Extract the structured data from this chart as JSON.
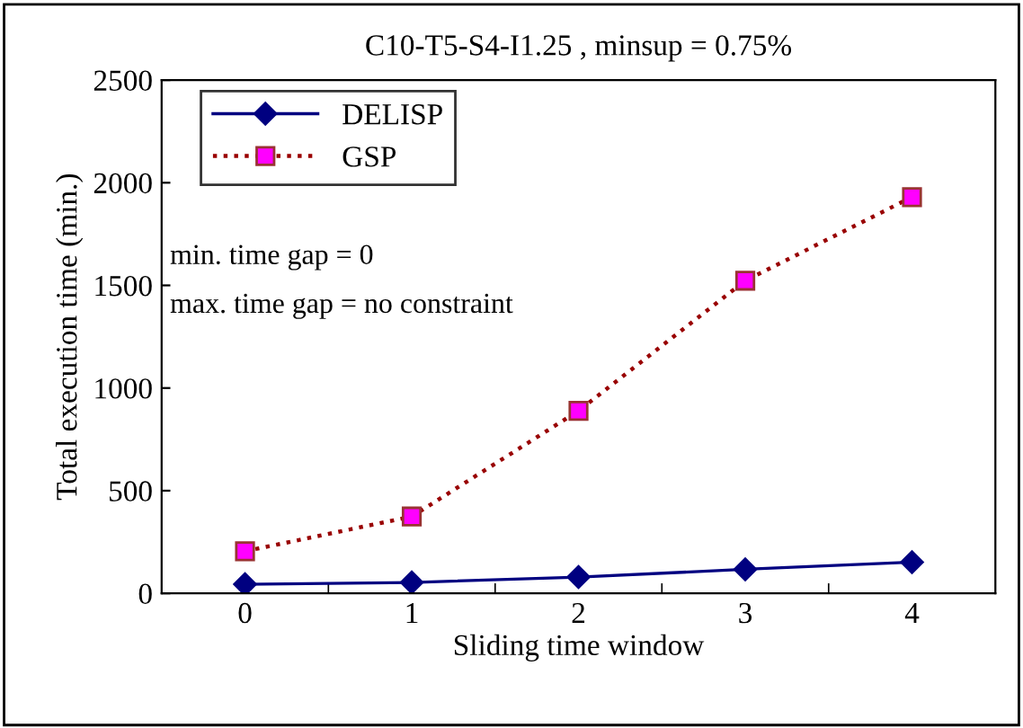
{
  "chart_data": {
    "type": "line",
    "title": "C10-T5-S4-I1.25 , minsup = 0.75%",
    "xlabel": "Sliding time window",
    "ylabel": "Total execution time (min.)",
    "categories": [
      "0",
      "1",
      "2",
      "3",
      "4"
    ],
    "series": [
      {
        "name": "DELISP",
        "color": "#000080",
        "values": [
          44,
          53,
          79,
          117,
          152
        ],
        "marker": "diamond",
        "line_style": "solid"
      },
      {
        "name": "GSP",
        "color": "#ff00ff",
        "values": [
          205,
          374,
          889,
          1523,
          1930
        ],
        "marker": "square",
        "line_style": "dotted"
      }
    ],
    "ylim": [
      0,
      2500
    ],
    "yticks": [
      0,
      500,
      1000,
      1500,
      2000,
      2500
    ],
    "grid": false,
    "legend": "top left",
    "annotations": [
      "min. time gap = 0",
      "max. time gap = no constraint"
    ]
  }
}
